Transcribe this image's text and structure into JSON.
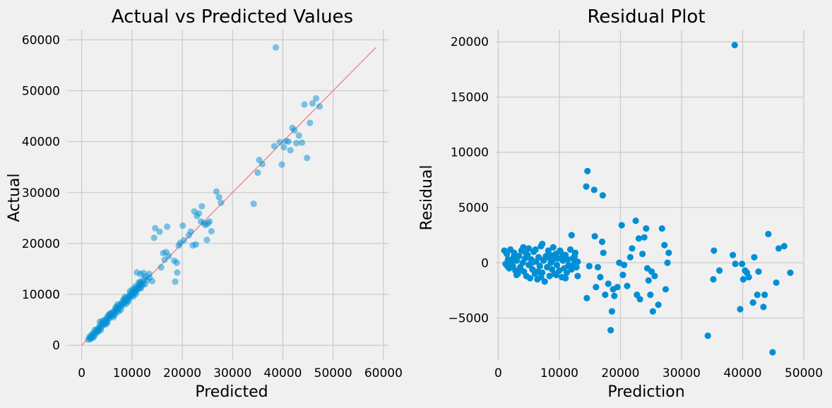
{
  "chart_data": [
    {
      "type": "scatter",
      "title": "Actual vs Predicted Values",
      "xlabel": "Predicted",
      "ylabel": "Actual",
      "xlim": [
        -2900,
        61000
      ],
      "ylim": [
        -2900,
        62000
      ],
      "xticks": [
        0,
        10000,
        20000,
        30000,
        40000,
        50000,
        60000
      ],
      "yticks": [
        0,
        10000,
        20000,
        30000,
        40000,
        50000,
        60000
      ],
      "grid": true,
      "marker_color": "#008fd5",
      "marker_alpha": 0.5,
      "reference_line": {
        "from": [
          0,
          0
        ],
        "to": [
          58500,
          58500
        ],
        "color": "#f08080"
      },
      "points": [
        [
          1300,
          1100
        ],
        [
          1500,
          1600
        ],
        [
          1700,
          1400
        ],
        [
          1900,
          2000
        ],
        [
          2000,
          1700
        ],
        [
          2200,
          2300
        ],
        [
          2400,
          2100
        ],
        [
          2500,
          1800
        ],
        [
          2700,
          2600
        ],
        [
          2900,
          2400
        ],
        [
          3000,
          3100
        ],
        [
          3200,
          2800
        ],
        [
          3400,
          3500
        ],
        [
          3500,
          3200
        ],
        [
          3700,
          3900
        ],
        [
          3900,
          3600
        ],
        [
          4000,
          4300
        ],
        [
          4200,
          3900
        ],
        [
          4400,
          4700
        ],
        [
          4500,
          4200
        ],
        [
          4700,
          5000
        ],
        [
          4900,
          4600
        ],
        [
          5000,
          5400
        ],
        [
          5200,
          5000
        ],
        [
          5400,
          5700
        ],
        [
          5500,
          5300
        ],
        [
          5700,
          6100
        ],
        [
          5900,
          5700
        ],
        [
          6000,
          6400
        ],
        [
          6200,
          6000
        ],
        [
          6400,
          6700
        ],
        [
          6500,
          6300
        ],
        [
          6700,
          7100
        ],
        [
          6900,
          6700
        ],
        [
          7000,
          7400
        ],
        [
          7200,
          7000
        ],
        [
          7400,
          7700
        ],
        [
          7500,
          7300
        ],
        [
          7700,
          8100
        ],
        [
          7900,
          7700
        ],
        [
          8000,
          8400
        ],
        [
          8200,
          8000
        ],
        [
          8400,
          8700
        ],
        [
          8500,
          8300
        ],
        [
          8700,
          9100
        ],
        [
          8900,
          8700
        ],
        [
          9000,
          9400
        ],
        [
          9200,
          9000
        ],
        [
          9400,
          9700
        ],
        [
          9500,
          9300
        ],
        [
          9700,
          10100
        ],
        [
          9900,
          9700
        ],
        [
          10000,
          10400
        ],
        [
          10200,
          10000
        ],
        [
          10400,
          10700
        ],
        [
          10500,
          10300
        ],
        [
          10700,
          11100
        ],
        [
          10900,
          10700
        ],
        [
          11000,
          11400
        ],
        [
          11200,
          11000
        ],
        [
          11400,
          11700
        ],
        [
          11500,
          11300
        ],
        [
          11700,
          12100
        ],
        [
          11900,
          11700
        ],
        [
          12000,
          12400
        ],
        [
          12200,
          12000
        ],
        [
          1800,
          1200
        ],
        [
          2600,
          3000
        ],
        [
          3300,
          2700
        ],
        [
          4100,
          4800
        ],
        [
          4800,
          4100
        ],
        [
          5600,
          6200
        ],
        [
          6300,
          5500
        ],
        [
          7100,
          8000
        ],
        [
          7800,
          7000
        ],
        [
          8600,
          9500
        ],
        [
          9300,
          8600
        ],
        [
          10100,
          11000
        ],
        [
          10800,
          10100
        ],
        [
          11600,
          12500
        ],
        [
          3600,
          4600
        ],
        [
          5100,
          4400
        ],
        [
          6800,
          7500
        ],
        [
          7300,
          6600
        ],
        [
          8300,
          9000
        ],
        [
          9600,
          10600
        ],
        [
          10600,
          11500
        ],
        [
          11300,
          12200
        ],
        [
          12400,
          13000
        ],
        [
          12700,
          13500
        ],
        [
          13000,
          12800
        ],
        [
          13400,
          14000
        ],
        [
          2300,
          1500
        ],
        [
          3800,
          3000
        ],
        [
          5300,
          5900
        ],
        [
          6600,
          6000
        ],
        [
          8800,
          8100
        ],
        [
          10300,
          9600
        ],
        [
          11800,
          11200
        ],
        [
          12600,
          12000
        ],
        [
          11000,
          14300
        ],
        [
          11700,
          14000
        ],
        [
          12300,
          14200
        ],
        [
          13500,
          13300
        ],
        [
          14000,
          12600
        ],
        [
          14600,
          23000
        ],
        [
          15500,
          22300
        ],
        [
          17000,
          23300
        ],
        [
          14400,
          21100
        ],
        [
          15800,
          15300
        ],
        [
          16200,
          18100
        ],
        [
          16800,
          18300
        ],
        [
          17300,
          17500
        ],
        [
          16500,
          16800
        ],
        [
          18400,
          16600
        ],
        [
          18900,
          16200
        ],
        [
          18600,
          12500
        ],
        [
          19000,
          14300
        ],
        [
          19300,
          19600
        ],
        [
          19600,
          20100
        ],
        [
          20100,
          23500
        ],
        [
          20300,
          20600
        ],
        [
          21300,
          21600
        ],
        [
          21700,
          22300
        ],
        [
          22100,
          19600
        ],
        [
          22400,
          26300
        ],
        [
          22900,
          25400
        ],
        [
          23300,
          25900
        ],
        [
          23900,
          27300
        ],
        [
          23700,
          24300
        ],
        [
          24300,
          24000
        ],
        [
          24600,
          23600
        ],
        [
          25100,
          23900
        ],
        [
          25400,
          24300
        ],
        [
          25800,
          22400
        ],
        [
          24900,
          20700
        ],
        [
          22700,
          19800
        ],
        [
          26800,
          30200
        ],
        [
          27300,
          29100
        ],
        [
          27700,
          28000
        ],
        [
          34200,
          27800
        ],
        [
          35000,
          33900
        ],
        [
          35300,
          36400
        ],
        [
          35900,
          35600
        ],
        [
          38300,
          39100
        ],
        [
          38600,
          58500
        ],
        [
          39400,
          39900
        ],
        [
          39800,
          35500
        ],
        [
          40200,
          38900
        ],
        [
          40600,
          40100
        ],
        [
          41100,
          40000
        ],
        [
          41500,
          38300
        ],
        [
          41900,
          42700
        ],
        [
          42300,
          42200
        ],
        [
          42700,
          39700
        ],
        [
          43200,
          41200
        ],
        [
          43800,
          39800
        ],
        [
          44300,
          47300
        ],
        [
          44800,
          36800
        ],
        [
          45400,
          43700
        ],
        [
          45900,
          47500
        ],
        [
          46600,
          48500
        ],
        [
          47300,
          46900
        ]
      ]
    },
    {
      "type": "scatter",
      "title": "Residual Plot",
      "xlabel": "Prediction",
      "ylabel": "Residual",
      "xlim": [
        -400,
        50000
      ],
      "ylim": [
        -8800,
        21100
      ],
      "xticks": [
        0,
        10000,
        20000,
        30000,
        40000,
        50000
      ],
      "yticks": [
        -5000,
        0,
        5000,
        10000,
        15000,
        20000
      ],
      "grid": true,
      "marker_color": "#008fd5",
      "marker_alpha": 1,
      "points": [
        [
          1000,
          1100
        ],
        [
          1200,
          -100
        ],
        [
          1400,
          800
        ],
        [
          1600,
          300
        ],
        [
          1800,
          -500
        ],
        [
          2000,
          1200
        ],
        [
          2200,
          100
        ],
        [
          2400,
          -300
        ],
        [
          2600,
          900
        ],
        [
          2800,
          -700
        ],
        [
          3000,
          200
        ],
        [
          3200,
          -1000
        ],
        [
          3400,
          600
        ],
        [
          3600,
          -400
        ],
        [
          3800,
          1100
        ],
        [
          4000,
          0
        ],
        [
          4200,
          -800
        ],
        [
          4400,
          400
        ],
        [
          4600,
          -1200
        ],
        [
          4800,
          700
        ],
        [
          5000,
          -200
        ],
        [
          5200,
          -1400
        ],
        [
          5400,
          300
        ],
        [
          5600,
          -600
        ],
        [
          5800,
          1000
        ],
        [
          6000,
          -1000
        ],
        [
          6200,
          100
        ],
        [
          6400,
          -1500
        ],
        [
          6600,
          500
        ],
        [
          6800,
          -300
        ],
        [
          7000,
          1500
        ],
        [
          7200,
          -900
        ],
        [
          7400,
          200
        ],
        [
          7600,
          -1700
        ],
        [
          7800,
          600
        ],
        [
          8000,
          -400
        ],
        [
          8200,
          1100
        ],
        [
          8400,
          -1200
        ],
        [
          8600,
          0
        ],
        [
          8800,
          -600
        ],
        [
          9000,
          300
        ],
        [
          9200,
          -1000
        ],
        [
          9400,
          800
        ],
        [
          9600,
          -200
        ],
        [
          9800,
          400
        ],
        [
          10000,
          -700
        ],
        [
          10200,
          1000
        ],
        [
          10400,
          -1300
        ],
        [
          10600,
          200
        ],
        [
          10800,
          -500
        ],
        [
          11000,
          700
        ],
        [
          11200,
          -900
        ],
        [
          11400,
          300
        ],
        [
          11600,
          -300
        ],
        [
          11800,
          1200
        ],
        [
          12000,
          -600
        ],
        [
          12200,
          400
        ],
        [
          12400,
          -100
        ],
        [
          12600,
          900
        ],
        [
          12800,
          -400
        ],
        [
          13000,
          100
        ],
        [
          1500,
          -300
        ],
        [
          2500,
          500
        ],
        [
          3500,
          -600
        ],
        [
          4500,
          900
        ],
        [
          5500,
          0
        ],
        [
          6500,
          -800
        ],
        [
          7500,
          300
        ],
        [
          8500,
          700
        ],
        [
          9500,
          -1100
        ],
        [
          10500,
          500
        ],
        [
          11500,
          -200
        ],
        [
          12500,
          600
        ],
        [
          3000,
          -1100
        ],
        [
          5000,
          1300
        ],
        [
          7000,
          -1300
        ],
        [
          9000,
          1400
        ],
        [
          11000,
          -1400
        ],
        [
          12000,
          2500
        ],
        [
          13000,
          -1200
        ],
        [
          7200,
          1700
        ],
        [
          8200,
          500
        ],
        [
          4100,
          1400
        ],
        [
          6100,
          1200
        ],
        [
          10100,
          1100
        ],
        [
          14600,
          8300
        ],
        [
          14400,
          6900
        ],
        [
          15700,
          6600
        ],
        [
          17100,
          6100
        ],
        [
          14500,
          -3200
        ],
        [
          14900,
          -300
        ],
        [
          15800,
          2400
        ],
        [
          16000,
          -2200
        ],
        [
          16300,
          -400
        ],
        [
          16700,
          -1300
        ],
        [
          17000,
          1900
        ],
        [
          17200,
          900
        ],
        [
          17500,
          -2900
        ],
        [
          18000,
          -1900
        ],
        [
          18400,
          -6100
        ],
        [
          18600,
          -4400
        ],
        [
          18800,
          -2400
        ],
        [
          19000,
          -3000
        ],
        [
          19500,
          -2200
        ],
        [
          19800,
          0
        ],
        [
          20200,
          3400
        ],
        [
          20400,
          -1100
        ],
        [
          20600,
          -200
        ],
        [
          21100,
          -2100
        ],
        [
          21600,
          500
        ],
        [
          21900,
          1300
        ],
        [
          22500,
          3800
        ],
        [
          22700,
          -2900
        ],
        [
          23000,
          2200
        ],
        [
          23200,
          -3300
        ],
        [
          23600,
          800
        ],
        [
          23900,
          2300
        ],
        [
          24200,
          3100
        ],
        [
          24400,
          -500
        ],
        [
          24600,
          -1600
        ],
        [
          24900,
          -2900
        ],
        [
          25100,
          -800
        ],
        [
          25300,
          -4400
        ],
        [
          25600,
          -1200
        ],
        [
          26200,
          -3800
        ],
        [
          26800,
          3100
        ],
        [
          27200,
          1600
        ],
        [
          27400,
          -2400
        ],
        [
          27700,
          0
        ],
        [
          27900,
          900
        ],
        [
          34300,
          -6600
        ],
        [
          35200,
          -1500
        ],
        [
          35300,
          1100
        ],
        [
          36200,
          -700
        ],
        [
          38400,
          700
        ],
        [
          38700,
          19700
        ],
        [
          38800,
          -100
        ],
        [
          39600,
          -4200
        ],
        [
          39900,
          -100
        ],
        [
          40100,
          -1500
        ],
        [
          40400,
          -700
        ],
        [
          40700,
          -900
        ],
        [
          41000,
          -1300
        ],
        [
          41700,
          -3600
        ],
        [
          41900,
          500
        ],
        [
          42400,
          -2900
        ],
        [
          42600,
          -800
        ],
        [
          43400,
          -4000
        ],
        [
          43600,
          -2900
        ],
        [
          44200,
          2600
        ],
        [
          44900,
          -8100
        ],
        [
          45500,
          -1800
        ],
        [
          45900,
          1300
        ],
        [
          46800,
          1500
        ],
        [
          47800,
          -900
        ]
      ]
    }
  ]
}
